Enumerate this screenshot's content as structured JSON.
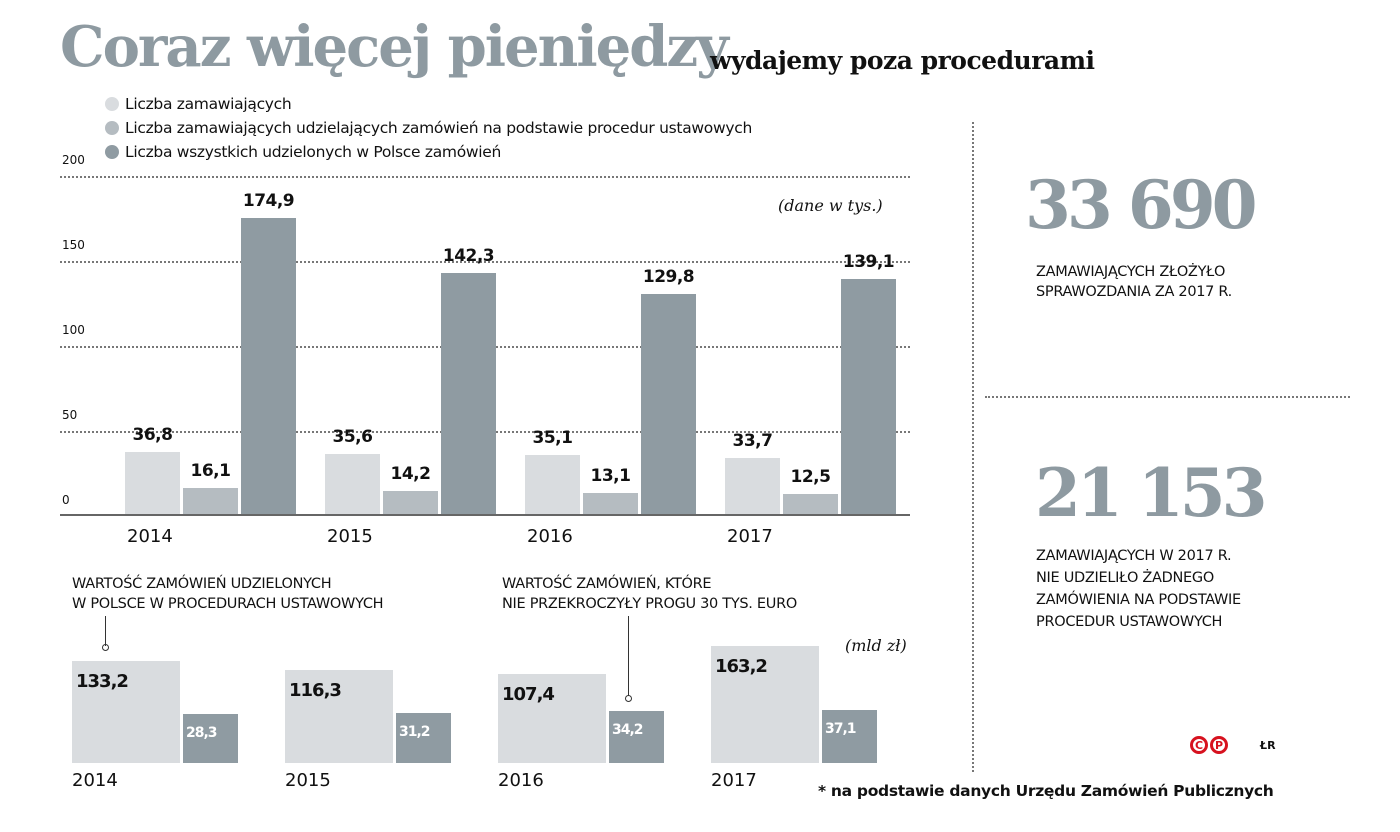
{
  "header": {
    "title": "Coraz więcej pieniędzy",
    "subtitle": "wydajemy poza procedurami"
  },
  "colors": {
    "light": "#d9dcdf",
    "mid": "#b5bcc1",
    "dark": "#8f9ba2",
    "title": "#8e9aa1",
    "logo": "#d7121f"
  },
  "chart_data": [
    {
      "type": "bar",
      "categories": [
        "2014",
        "2015",
        "2016",
        "2017"
      ],
      "series": [
        {
          "name": "Liczba zamawiających",
          "values": [
            36.8,
            35.6,
            35.1,
            33.7
          ],
          "labels": [
            "36,8",
            "35,6",
            "35,1",
            "33,7"
          ]
        },
        {
          "name": "Liczba zamawiających udzielających zamówień na podstawie procedur ustawowych",
          "values": [
            16.1,
            14.2,
            13.1,
            12.5
          ],
          "labels": [
            "16,1",
            "14,2",
            "13,1",
            "12,5"
          ]
        },
        {
          "name": "Liczba wszystkich udzielonych w Polsce zamówień",
          "values": [
            174.9,
            142.3,
            129.8,
            139.1
          ],
          "labels": [
            "174,9",
            "142,3",
            "129,8",
            "139,1"
          ]
        }
      ],
      "yticks": [
        "0",
        "50",
        "100",
        "150",
        "200"
      ],
      "ylim": [
        0,
        200
      ],
      "unit": "(dane w tys.)",
      "grid": true,
      "legend": "top-left"
    },
    {
      "type": "bar",
      "categories": [
        "2014",
        "2015",
        "2016",
        "2017"
      ],
      "series": [
        {
          "name": "WARTOŚĆ ZAMÓWIEŃ UDZIELONYCH W POLSCE W PROCEDURACH USTAWOWYCH",
          "values": [
            133.2,
            116.3,
            107.4,
            163.2
          ],
          "labels": [
            "133,2",
            "116,3",
            "107,4",
            "163,2"
          ]
        },
        {
          "name": "WARTOŚĆ ZAMÓWIEŃ, KTÓRE NIE PRZEKROCZYŁY PROGU 30 TYS. EURO",
          "values": [
            28.3,
            31.2,
            34.2,
            37.1
          ],
          "labels": [
            "28,3",
            "31,2",
            "34,2",
            "37,1"
          ]
        }
      ],
      "annotation1": [
        "WARTOŚĆ ZAMÓWIEŃ UDZIELONYCH",
        "W POLSCE W PROCEDURACH USTAWOWYCH"
      ],
      "annotation2": [
        "WARTOŚĆ ZAMÓWIEŃ, KTÓRE",
        "NIE PRZEKROCZYŁY PROGU 30 TYS. EURO"
      ],
      "unit": "(mld zł)"
    }
  ],
  "facts": [
    {
      "number": "33 690",
      "lines": [
        "ZAMAWIAJĄCYCH ZŁOŻYŁO",
        "SPRAWOZDANIA ZA 2017 R."
      ]
    },
    {
      "number": "21 153",
      "lines": [
        "ZAMAWIAJĄCYCH W 2017 R.",
        "NIE UDZIELIŁO ŻADNEGO",
        "ZAMÓWIENIA NA PODSTAWIE",
        "PROCEDUR USTAWOWYCH"
      ]
    }
  ],
  "footer": {
    "source": "* na podstawie danych Urzędu Zamówień Publicznych",
    "author": "ŁR",
    "logo_text": "CP"
  }
}
